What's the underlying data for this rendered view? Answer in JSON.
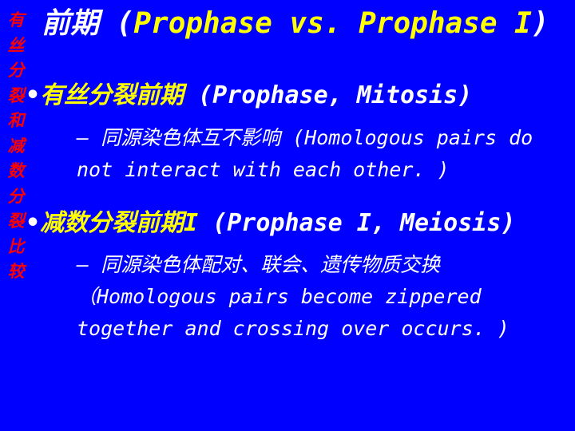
{
  "sidebar": {
    "chars": [
      "有",
      "丝",
      "分",
      "裂",
      "和",
      "减",
      "数",
      "分",
      "裂",
      "比",
      "较"
    ],
    "color": "#ff0000",
    "fontsize": 21
  },
  "title": {
    "text_pre": "前期 (",
    "accent": "Prophase vs. Prophase I",
    "text_post": ")",
    "fontsize": 36,
    "accent_color": "#ffff00"
  },
  "bullets": [
    {
      "heading_accent": "有丝分裂前期",
      "heading_rest": " (Prophase, Mitosis)",
      "sub": "– 同源染色体互不影响 (Homologous pairs do not interact with each other. )"
    },
    {
      "heading_accent": "减数分裂前期I",
      "heading_rest": " (Prophase I, Meiosis)",
      "sub": "– 同源染色体配对、联会、遗传物质交换（Homologous pairs become zippered together and crossing over occurs. )"
    }
  ],
  "colors": {
    "background": "#0000ff",
    "text": "#ffffff",
    "accent": "#ffff00",
    "sidebar": "#ff0000"
  }
}
